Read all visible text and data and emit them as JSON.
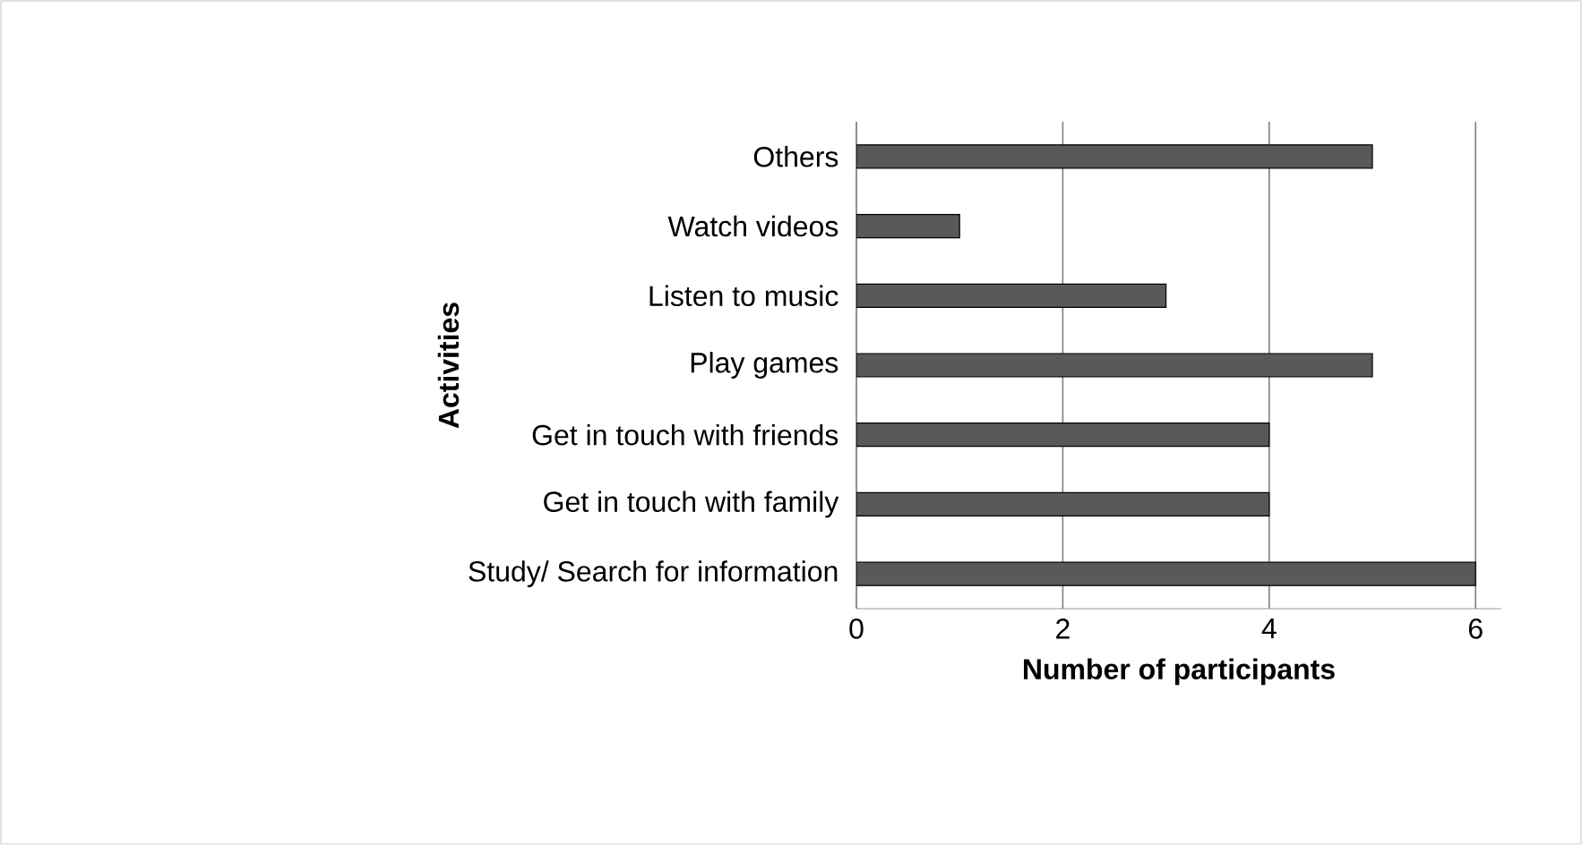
{
  "chart_data": {
    "type": "bar",
    "orientation": "horizontal",
    "categories": [
      "Others",
      "Watch videos",
      "Listen to music",
      "Play games",
      "Get in touch with friends",
      "Get in touch with family",
      "Study/ Search for information"
    ],
    "values": [
      5,
      1,
      3,
      5,
      4,
      4,
      6
    ],
    "color": "#595959",
    "xlabel": "Number of participants",
    "ylabel": "Activities",
    "xlim": [
      0,
      6.25
    ],
    "xticks": [
      0,
      2,
      4,
      6
    ],
    "grid": "x"
  }
}
